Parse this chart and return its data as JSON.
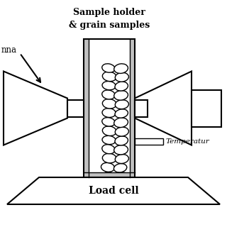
{
  "bg_color": "#ffffff",
  "line_color": "#000000",
  "gray_color": "#c0c0c0",
  "title_line1": "Sample holder",
  "title_line2": "& grain samples",
  "label_antenna": "nna",
  "label_temperature": "Temperatur",
  "label_load_cell": "Load cell",
  "seeds": [
    [
      0.485,
      0.82,
      0.062,
      0.042,
      5
    ],
    [
      0.54,
      0.825,
      0.06,
      0.04,
      -8
    ],
    [
      0.48,
      0.778,
      0.058,
      0.04,
      10
    ],
    [
      0.535,
      0.78,
      0.062,
      0.042,
      -5
    ],
    [
      0.475,
      0.737,
      0.06,
      0.04,
      8
    ],
    [
      0.53,
      0.74,
      0.058,
      0.038,
      -10
    ],
    [
      0.482,
      0.697,
      0.062,
      0.042,
      5
    ],
    [
      0.537,
      0.7,
      0.06,
      0.04,
      -7
    ],
    [
      0.478,
      0.657,
      0.058,
      0.04,
      12
    ],
    [
      0.533,
      0.66,
      0.062,
      0.042,
      -5
    ],
    [
      0.48,
      0.617,
      0.06,
      0.038,
      6
    ],
    [
      0.535,
      0.62,
      0.058,
      0.04,
      -9
    ],
    [
      0.482,
      0.577,
      0.062,
      0.042,
      8
    ],
    [
      0.537,
      0.58,
      0.06,
      0.04,
      -6
    ],
    [
      0.478,
      0.537,
      0.058,
      0.038,
      10
    ],
    [
      0.533,
      0.54,
      0.062,
      0.042,
      -8
    ],
    [
      0.48,
      0.497,
      0.06,
      0.04,
      5
    ],
    [
      0.535,
      0.5,
      0.058,
      0.038,
      -10
    ],
    [
      0.482,
      0.457,
      0.062,
      0.042,
      7
    ],
    [
      0.537,
      0.46,
      0.06,
      0.04,
      -5
    ],
    [
      0.478,
      0.417,
      0.058,
      0.04,
      9
    ],
    [
      0.533,
      0.42,
      0.062,
      0.042,
      -7
    ],
    [
      0.48,
      0.377,
      0.06,
      0.038,
      6
    ],
    [
      0.535,
      0.38,
      0.058,
      0.04,
      -9
    ],
    [
      0.482,
      0.337,
      0.062,
      0.042,
      8
    ],
    [
      0.537,
      0.34,
      0.06,
      0.04,
      -6
    ],
    [
      0.478,
      0.3,
      0.058,
      0.038,
      10
    ],
    [
      0.533,
      0.302,
      0.062,
      0.042,
      -8
    ]
  ]
}
